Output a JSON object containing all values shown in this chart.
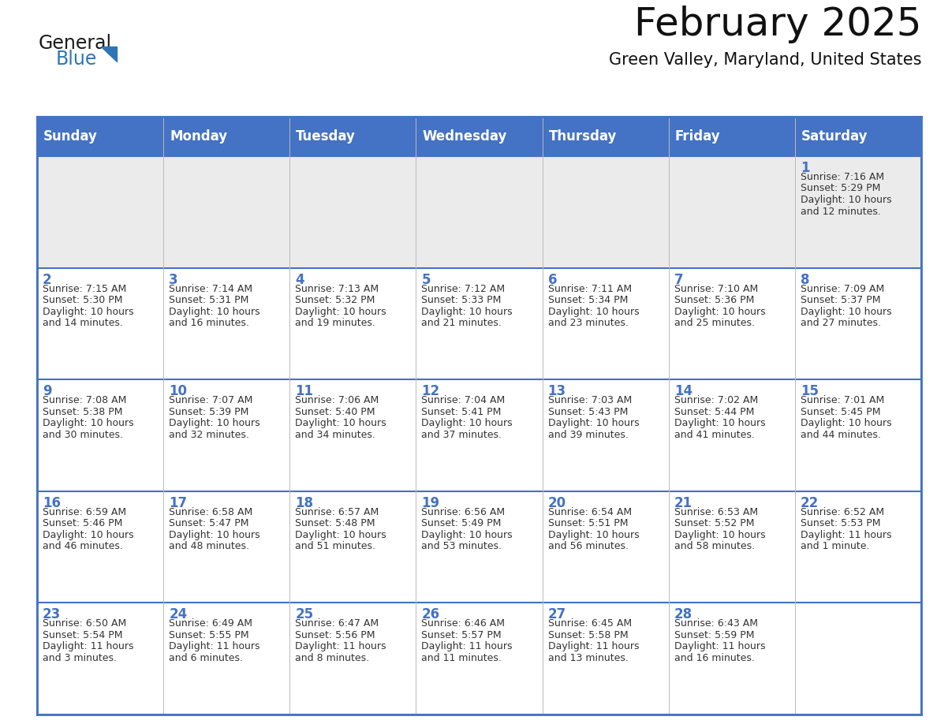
{
  "title": "February 2025",
  "subtitle": "Green Valley, Maryland, United States",
  "days_of_week": [
    "Sunday",
    "Monday",
    "Tuesday",
    "Wednesday",
    "Thursday",
    "Friday",
    "Saturday"
  ],
  "header_bg": "#4472C4",
  "header_text": "#FFFFFF",
  "row0_bg": "#EBEBEB",
  "row_bg": "#FFFFFF",
  "grid_line_color": "#4472C4",
  "day_number_color": "#4472C4",
  "info_color": "#333333",
  "logo_general_color": "#1a1a1a",
  "logo_blue_color": "#2E75B6",
  "calendar_data": [
    {
      "day": 1,
      "col": 6,
      "row": 0,
      "sunrise": "7:16 AM",
      "sunset": "5:29 PM",
      "dl1": "Daylight: 10 hours",
      "dl2": "and 12 minutes."
    },
    {
      "day": 2,
      "col": 0,
      "row": 1,
      "sunrise": "7:15 AM",
      "sunset": "5:30 PM",
      "dl1": "Daylight: 10 hours",
      "dl2": "and 14 minutes."
    },
    {
      "day": 3,
      "col": 1,
      "row": 1,
      "sunrise": "7:14 AM",
      "sunset": "5:31 PM",
      "dl1": "Daylight: 10 hours",
      "dl2": "and 16 minutes."
    },
    {
      "day": 4,
      "col": 2,
      "row": 1,
      "sunrise": "7:13 AM",
      "sunset": "5:32 PM",
      "dl1": "Daylight: 10 hours",
      "dl2": "and 19 minutes."
    },
    {
      "day": 5,
      "col": 3,
      "row": 1,
      "sunrise": "7:12 AM",
      "sunset": "5:33 PM",
      "dl1": "Daylight: 10 hours",
      "dl2": "and 21 minutes."
    },
    {
      "day": 6,
      "col": 4,
      "row": 1,
      "sunrise": "7:11 AM",
      "sunset": "5:34 PM",
      "dl1": "Daylight: 10 hours",
      "dl2": "and 23 minutes."
    },
    {
      "day": 7,
      "col": 5,
      "row": 1,
      "sunrise": "7:10 AM",
      "sunset": "5:36 PM",
      "dl1": "Daylight: 10 hours",
      "dl2": "and 25 minutes."
    },
    {
      "day": 8,
      "col": 6,
      "row": 1,
      "sunrise": "7:09 AM",
      "sunset": "5:37 PM",
      "dl1": "Daylight: 10 hours",
      "dl2": "and 27 minutes."
    },
    {
      "day": 9,
      "col": 0,
      "row": 2,
      "sunrise": "7:08 AM",
      "sunset": "5:38 PM",
      "dl1": "Daylight: 10 hours",
      "dl2": "and 30 minutes."
    },
    {
      "day": 10,
      "col": 1,
      "row": 2,
      "sunrise": "7:07 AM",
      "sunset": "5:39 PM",
      "dl1": "Daylight: 10 hours",
      "dl2": "and 32 minutes."
    },
    {
      "day": 11,
      "col": 2,
      "row": 2,
      "sunrise": "7:06 AM",
      "sunset": "5:40 PM",
      "dl1": "Daylight: 10 hours",
      "dl2": "and 34 minutes."
    },
    {
      "day": 12,
      "col": 3,
      "row": 2,
      "sunrise": "7:04 AM",
      "sunset": "5:41 PM",
      "dl1": "Daylight: 10 hours",
      "dl2": "and 37 minutes."
    },
    {
      "day": 13,
      "col": 4,
      "row": 2,
      "sunrise": "7:03 AM",
      "sunset": "5:43 PM",
      "dl1": "Daylight: 10 hours",
      "dl2": "and 39 minutes."
    },
    {
      "day": 14,
      "col": 5,
      "row": 2,
      "sunrise": "7:02 AM",
      "sunset": "5:44 PM",
      "dl1": "Daylight: 10 hours",
      "dl2": "and 41 minutes."
    },
    {
      "day": 15,
      "col": 6,
      "row": 2,
      "sunrise": "7:01 AM",
      "sunset": "5:45 PM",
      "dl1": "Daylight: 10 hours",
      "dl2": "and 44 minutes."
    },
    {
      "day": 16,
      "col": 0,
      "row": 3,
      "sunrise": "6:59 AM",
      "sunset": "5:46 PM",
      "dl1": "Daylight: 10 hours",
      "dl2": "and 46 minutes."
    },
    {
      "day": 17,
      "col": 1,
      "row": 3,
      "sunrise": "6:58 AM",
      "sunset": "5:47 PM",
      "dl1": "Daylight: 10 hours",
      "dl2": "and 48 minutes."
    },
    {
      "day": 18,
      "col": 2,
      "row": 3,
      "sunrise": "6:57 AM",
      "sunset": "5:48 PM",
      "dl1": "Daylight: 10 hours",
      "dl2": "and 51 minutes."
    },
    {
      "day": 19,
      "col": 3,
      "row": 3,
      "sunrise": "6:56 AM",
      "sunset": "5:49 PM",
      "dl1": "Daylight: 10 hours",
      "dl2": "and 53 minutes."
    },
    {
      "day": 20,
      "col": 4,
      "row": 3,
      "sunrise": "6:54 AM",
      "sunset": "5:51 PM",
      "dl1": "Daylight: 10 hours",
      "dl2": "and 56 minutes."
    },
    {
      "day": 21,
      "col": 5,
      "row": 3,
      "sunrise": "6:53 AM",
      "sunset": "5:52 PM",
      "dl1": "Daylight: 10 hours",
      "dl2": "and 58 minutes."
    },
    {
      "day": 22,
      "col": 6,
      "row": 3,
      "sunrise": "6:52 AM",
      "sunset": "5:53 PM",
      "dl1": "Daylight: 11 hours",
      "dl2": "and 1 minute."
    },
    {
      "day": 23,
      "col": 0,
      "row": 4,
      "sunrise": "6:50 AM",
      "sunset": "5:54 PM",
      "dl1": "Daylight: 11 hours",
      "dl2": "and 3 minutes."
    },
    {
      "day": 24,
      "col": 1,
      "row": 4,
      "sunrise": "6:49 AM",
      "sunset": "5:55 PM",
      "dl1": "Daylight: 11 hours",
      "dl2": "and 6 minutes."
    },
    {
      "day": 25,
      "col": 2,
      "row": 4,
      "sunrise": "6:47 AM",
      "sunset": "5:56 PM",
      "dl1": "Daylight: 11 hours",
      "dl2": "and 8 minutes."
    },
    {
      "day": 26,
      "col": 3,
      "row": 4,
      "sunrise": "6:46 AM",
      "sunset": "5:57 PM",
      "dl1": "Daylight: 11 hours",
      "dl2": "and 11 minutes."
    },
    {
      "day": 27,
      "col": 4,
      "row": 4,
      "sunrise": "6:45 AM",
      "sunset": "5:58 PM",
      "dl1": "Daylight: 11 hours",
      "dl2": "and 13 minutes."
    },
    {
      "day": 28,
      "col": 5,
      "row": 4,
      "sunrise": "6:43 AM",
      "sunset": "5:59 PM",
      "dl1": "Daylight: 11 hours",
      "dl2": "and 16 minutes."
    }
  ],
  "num_rows": 5,
  "num_cols": 7,
  "fig_width": 11.88,
  "fig_height": 9.18,
  "title_fontsize": 36,
  "subtitle_fontsize": 15,
  "header_fontsize": 12,
  "day_num_fontsize": 12,
  "info_fontsize": 9.0
}
